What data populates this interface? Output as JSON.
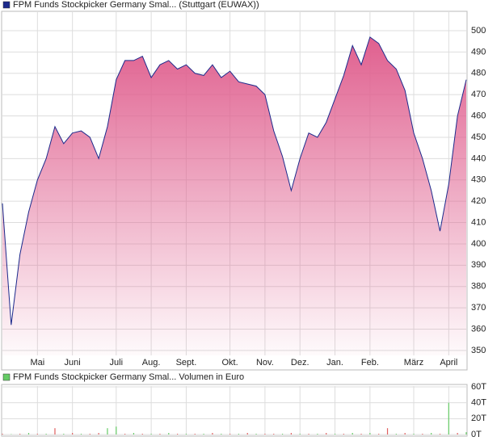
{
  "chart_data": [
    {
      "type": "area",
      "series": [
        {
          "name": "FPM Funds Stockpicker Germany Smal... (Stuttgart (EUWAX))",
          "color": "#1c2a8c",
          "fill": "#e0608f",
          "values": [
            419,
            362,
            395,
            415,
            430,
            440,
            455,
            447,
            452,
            453,
            450,
            440,
            455,
            477,
            486,
            486,
            488,
            478,
            484,
            486,
            482,
            484,
            480,
            479,
            484,
            478,
            481,
            476,
            475,
            474,
            470,
            453,
            441,
            425,
            440,
            452,
            450,
            457,
            468,
            479,
            493,
            484,
            497,
            494,
            486,
            482,
            472,
            452,
            440,
            425,
            406,
            428,
            460,
            477
          ]
        }
      ],
      "categories": [
        null,
        null,
        null,
        null,
        "Mai",
        null,
        null,
        null,
        "Juni",
        null,
        null,
        null,
        null,
        "Juli",
        null,
        null,
        null,
        "Aug.",
        null,
        null,
        null,
        "Sept.",
        null,
        null,
        null,
        null,
        "Okt.",
        null,
        null,
        null,
        "Nov.",
        null,
        null,
        null,
        "Dez.",
        null,
        null,
        null,
        "Jan.",
        null,
        null,
        null,
        "Feb.",
        null,
        null,
        null,
        null,
        "März",
        null,
        null,
        null,
        "April",
        null,
        null
      ],
      "ylim": [
        347.7,
        508.7
      ],
      "yticks": [
        350,
        360,
        370,
        380,
        390,
        400,
        410,
        420,
        430,
        440,
        450,
        460,
        470,
        480,
        490,
        500
      ],
      "grid": true
    },
    {
      "type": "bar",
      "series": [
        {
          "name": "FPM Funds Stockpicker Germany Smal... Volumen in Euro",
          "color": "#66cc66",
          "values": [
            1,
            0.5,
            1,
            2,
            1,
            1,
            8,
            1,
            2,
            1,
            1,
            2,
            8,
            10,
            1,
            2,
            1,
            1,
            1,
            2,
            1,
            1,
            1,
            1,
            2,
            1,
            1,
            1,
            2,
            1,
            1,
            1,
            1,
            2,
            1,
            1,
            1,
            2,
            1,
            1,
            2,
            1,
            2,
            1,
            8,
            1,
            2,
            1,
            1,
            2,
            1,
            40,
            2,
            3
          ],
          "colors": [
            "#e06060",
            "#66cc66",
            "#e06060",
            "#66cc66",
            "#e06060",
            "#66cc66",
            "#e06060",
            "#66cc66",
            "#e06060",
            "#66cc66",
            "#e06060",
            "#e06060",
            "#66cc66",
            "#66cc66",
            "#e06060",
            "#66cc66",
            "#e06060",
            "#66cc66",
            "#e06060",
            "#66cc66",
            "#e06060",
            "#66cc66",
            "#e06060",
            "#66cc66",
            "#e06060",
            "#66cc66",
            "#e06060",
            "#66cc66",
            "#e06060",
            "#66cc66",
            "#e06060",
            "#e06060",
            "#66cc66",
            "#e06060",
            "#66cc66",
            "#e06060",
            "#66cc66",
            "#e06060",
            "#66cc66",
            "#e06060",
            "#66cc66",
            "#e06060",
            "#66cc66",
            "#e06060",
            "#e06060",
            "#66cc66",
            "#e06060",
            "#66cc66",
            "#e06060",
            "#66cc66",
            "#e06060",
            "#66cc66",
            "#e06060",
            "#66cc66"
          ]
        }
      ],
      "ylim": [
        0,
        61
      ],
      "yticks": [
        {
          "value": 0,
          "label": "0T"
        },
        {
          "value": 20,
          "label": "20T"
        },
        {
          "value": 40,
          "label": "40T"
        },
        {
          "value": 60,
          "label": "60T"
        }
      ],
      "grid": true
    }
  ]
}
